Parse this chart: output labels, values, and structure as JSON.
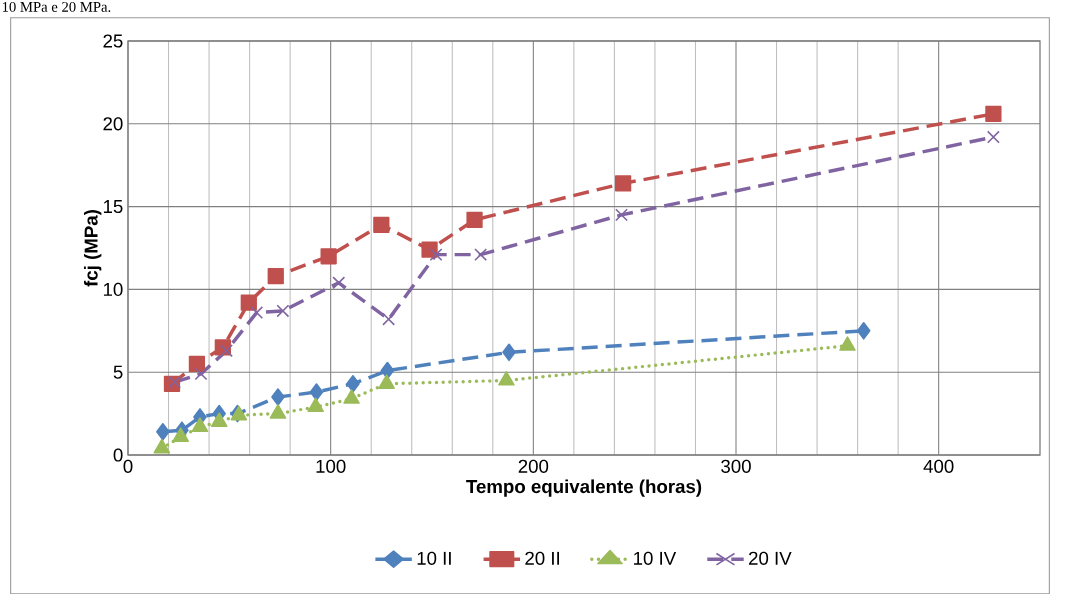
{
  "chart_data": {
    "type": "line",
    "xlabel": "Tempo equivalente (horas)",
    "ylabel": "fcj (MPa)",
    "annotations": [
      "10 MPa e 20 MPa."
    ],
    "xlim": [
      0,
      450
    ],
    "xticks": [
      0,
      100,
      200,
      300,
      400
    ],
    "ylim": [
      0,
      25
    ],
    "yticks": [
      0,
      5,
      10,
      15,
      20,
      25
    ],
    "grid": true,
    "legend": "bottom",
    "series": [
      {
        "name": "10 II",
        "color": "#4f81bd",
        "marker": "diamond",
        "line_style": "dashed",
        "x": [
          17.2,
          26.6,
          35.5,
          45,
          54,
          74,
          93,
          111,
          128,
          188,
          363
        ],
        "values": [
          1.4,
          1.5,
          2.3,
          2.5,
          2.5,
          3.5,
          3.8,
          4.3,
          5.1,
          6.2,
          7.5
        ]
      },
      {
        "name": "20 II",
        "color": "#c0504d",
        "marker": "square",
        "line_style": "dashed",
        "x": [
          21.7,
          34,
          46.8,
          59.6,
          72.9,
          99,
          125,
          148.8,
          171,
          244.3,
          427
        ],
        "values": [
          4.3,
          5.5,
          6.5,
          9.2,
          10.8,
          12.0,
          13.9,
          12.4,
          14.2,
          16.4,
          20.6
        ]
      },
      {
        "name": "10 IV",
        "color": "#9bbb59",
        "marker": "triangle",
        "line_style": "dotted",
        "x": [
          16.7,
          26,
          35.5,
          45,
          54.7,
          74,
          92.6,
          110.3,
          127.6,
          186.7,
          355
        ],
        "values": [
          0.4,
          1.1,
          1.7,
          2.0,
          2.4,
          2.5,
          2.9,
          3.4,
          4.3,
          4.5,
          6.6
        ]
      },
      {
        "name": "20 IV",
        "color": "#8064a2",
        "marker": "cross",
        "line_style": "dashed",
        "x": [
          23,
          36,
          48.6,
          63.5,
          76.4,
          104,
          128.6,
          152,
          174,
          243.5,
          427
        ],
        "values": [
          4.4,
          4.9,
          6.3,
          8.6,
          8.7,
          10.4,
          8.2,
          12.1,
          12.1,
          14.5,
          19.2
        ]
      }
    ]
  }
}
